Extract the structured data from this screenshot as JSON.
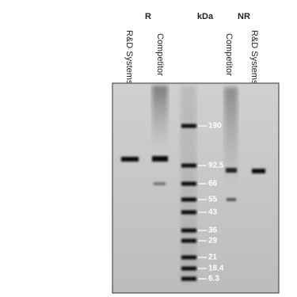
{
  "headers": {
    "reducing": "R",
    "unit": "kDa",
    "non_reducing": "NR"
  },
  "lanes": [
    "R&D Systems",
    "Competitor",
    "Competitor",
    "R&D Systems"
  ],
  "markers": [
    "190",
    "92.5",
    "66",
    "55",
    "43",
    "36",
    "29",
    "21",
    "18.4",
    "6.3"
  ]
}
